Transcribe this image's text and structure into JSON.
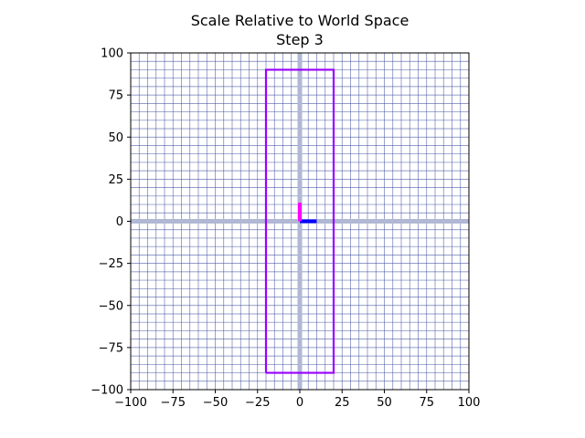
{
  "chart_data": {
    "type": "line",
    "title": "Scale Relative to World Space",
    "subtitle": "Step 3",
    "xlabel": "",
    "ylabel": "",
    "xlim": [
      -100,
      100
    ],
    "ylim": [
      -100,
      100
    ],
    "grid": true,
    "minor_grid_step": 5,
    "x_ticks": [
      -100,
      -75,
      -50,
      -25,
      0,
      25,
      50,
      75,
      100
    ],
    "y_ticks": [
      -100,
      -75,
      -50,
      -25,
      0,
      25,
      50,
      75,
      100
    ],
    "x_tick_labels": [
      "−100",
      "−75",
      "−50",
      "−25",
      "0",
      "25",
      "50",
      "75",
      "100"
    ],
    "y_tick_labels": [
      "−100",
      "−75",
      "−50",
      "−25",
      "0",
      "25",
      "50",
      "75",
      "100"
    ],
    "world_axes": {
      "x": [
        [
          -100,
          0
        ],
        [
          100,
          0
        ]
      ],
      "y": [
        [
          0,
          -100
        ],
        [
          0,
          100
        ]
      ],
      "color": "#b0b8d4"
    },
    "series": [
      {
        "points": [
          [
            -20,
            -90
          ],
          [
            20,
            -90
          ],
          [
            20,
            90
          ],
          [
            -20,
            90
          ],
          [
            -20,
            -90
          ]
        ],
        "color": "#9a00ff"
      },
      {
        "points": [
          [
            0,
            0
          ],
          [
            10,
            0
          ]
        ],
        "color": "#0000ff"
      },
      {
        "points": [
          [
            0,
            0
          ],
          [
            0,
            11
          ]
        ],
        "color": "#ff00ff"
      }
    ],
    "colors": {
      "grid": "#4050a0",
      "world_axis": "#b0b8d4",
      "rectangle": "#9a00ff",
      "local_x": "#0000ff",
      "local_y": "#ff00ff"
    }
  }
}
